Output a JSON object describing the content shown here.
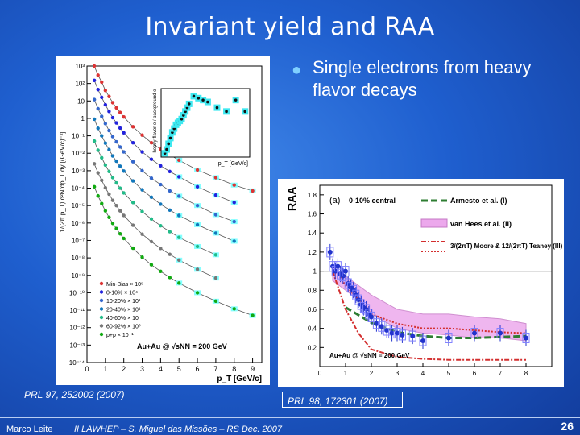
{
  "slide": {
    "title": "Invariant yield and RAA",
    "bullet": "Single electrons from heavy flavor decays",
    "ref_left": "PRL 97, 252002 (2007)",
    "ref_right": "PRL 98, 172301 (2007)",
    "footer_author": "Marco Leite",
    "footer_event": "II LAWHEP – S. Miguel das Missões – RS   Dec. 2007",
    "page_number": "26",
    "colors": {
      "background": "#1f5fcf",
      "accent": "#7fd0ff"
    }
  },
  "chart_data": [
    {
      "type": "scatter",
      "y_scale": "log",
      "xlabel": "p_T [GeV/c]",
      "ylabel": "1/(2π p_T) d²N/dp_T dy [(GeV/c)⁻²]",
      "x_ticks": [
        "0",
        "1",
        "2",
        "3",
        "4",
        "5",
        "6",
        "7",
        "8",
        "9"
      ],
      "y_ticks": [
        "10³",
        "10²",
        "10",
        "1",
        "10⁻¹",
        "10⁻²",
        "10⁻³",
        "10⁻⁴",
        "10⁻⁵",
        "10⁻⁶",
        "10⁻⁷",
        "10⁻⁸",
        "10⁻⁹",
        "10⁻¹⁰",
        "10⁻¹¹",
        "10⁻¹²",
        "10⁻¹³",
        "10⁻¹⁴"
      ],
      "legend": [
        "Min-Bias × 10⁵",
        "0-10% × 10⁴",
        "10-20% × 10³",
        "20-40% × 10²",
        "40-60% × 10",
        "60-92% × 10⁰",
        "p+p × 10⁻¹"
      ],
      "annotation": "Au+Au @ √sNN = 200 GeV",
      "series_colors": [
        "#d33",
        "#22d",
        "#36c",
        "#17b",
        "#2b8",
        "#777",
        "#1a1"
      ],
      "series": [
        {
          "name": "Min-Bias × 10⁵",
          "x": [
            0.4,
            0.6,
            0.8,
            1.0,
            1.2,
            1.4,
            1.6,
            1.8,
            2.0,
            2.5,
            3.0,
            3.5,
            4.0,
            4.5,
            5.0,
            6.0,
            7.0,
            8.0,
            9.0
          ],
          "y": [
            1000,
            300,
            120,
            40,
            18,
            8,
            4,
            2.2,
            1.2,
            0.33,
            0.11,
            0.04,
            0.017,
            0.008,
            0.004,
            0.0011,
            0.0004,
            0.00015,
            7e-05
          ]
        },
        {
          "name": "0-10% × 10⁴",
          "x": [
            0.4,
            0.6,
            0.8,
            1.0,
            1.2,
            1.4,
            1.6,
            1.8,
            2.0,
            2.5,
            3.0,
            3.5,
            4.0,
            4.5,
            5.0,
            6.0,
            7.0,
            8.0
          ],
          "y": [
            150,
            45,
            16,
            6,
            2.5,
            1.1,
            0.55,
            0.28,
            0.15,
            0.04,
            0.012,
            0.0045,
            0.0019,
            0.0009,
            0.00045,
            0.00012,
            4e-05,
            1.5e-05
          ]
        },
        {
          "name": "10-20% × 10³",
          "x": [
            0.4,
            0.6,
            0.8,
            1.0,
            1.2,
            1.4,
            1.6,
            1.8,
            2.0,
            2.5,
            3.0,
            3.5,
            4.0,
            4.5,
            5.0,
            6.0,
            7.0,
            8.0
          ],
          "y": [
            12,
            3.6,
            1.3,
            0.5,
            0.2,
            0.09,
            0.045,
            0.023,
            0.012,
            0.0033,
            0.001,
            0.00037,
            0.00016,
            7e-05,
            3.5e-05,
            1e-05,
            3e-06,
            1.2e-06
          ]
        },
        {
          "name": "20-40% × 10²",
          "x": [
            0.4,
            0.6,
            0.8,
            1.0,
            1.2,
            1.4,
            1.6,
            1.8,
            2.0,
            2.5,
            3.0,
            3.5,
            4.0,
            4.5,
            5.0,
            6.0,
            7.0,
            8.0
          ],
          "y": [
            0.9,
            0.27,
            0.1,
            0.038,
            0.016,
            0.007,
            0.0035,
            0.0018,
            0.00095,
            0.00026,
            8e-05,
            3e-05,
            1.2e-05,
            5.5e-06,
            2.7e-06,
            8e-07,
            2.6e-07,
            9e-08
          ]
        },
        {
          "name": "40-60% × 10",
          "x": [
            0.4,
            0.6,
            0.8,
            1.0,
            1.2,
            1.4,
            1.6,
            1.8,
            2.0,
            2.5,
            3.0,
            3.5,
            4.0,
            4.5,
            5.0,
            6.0,
            7.0
          ],
          "y": [
            0.05,
            0.015,
            0.0055,
            0.0021,
            0.0009,
            0.0004,
            0.0002,
            0.0001,
            5.3e-05,
            1.5e-05,
            4.5e-06,
            1.7e-06,
            7e-07,
            3.2e-07,
            1.5e-07,
            4.5e-08,
            1.5e-08
          ]
        },
        {
          "name": "60-92% × 10⁰",
          "x": [
            0.4,
            0.6,
            0.8,
            1.0,
            1.2,
            1.4,
            1.6,
            1.8,
            2.0,
            2.5,
            3.0,
            3.5,
            4.0,
            4.5,
            5.0,
            6.0,
            7.0
          ],
          "y": [
            0.0025,
            0.00075,
            0.00028,
            0.000105,
            4.5e-05,
            2e-05,
            1e-05,
            5e-06,
            2.7e-06,
            7.5e-07,
            2.3e-07,
            8.5e-08,
            3.5e-08,
            1.6e-08,
            7.5e-09,
            2.2e-09,
            7e-10
          ]
        },
        {
          "name": "p+p × 10⁻¹",
          "x": [
            0.4,
            0.6,
            0.8,
            1.0,
            1.2,
            1.4,
            1.6,
            1.8,
            2.0,
            2.5,
            3.0,
            3.5,
            4.0,
            4.5,
            5.0,
            6.0,
            7.0,
            8.0,
            9.0
          ],
          "y": [
            0.00012,
            3.6e-05,
            1.3e-05,
            5e-06,
            2.1e-06,
            9.5e-07,
            4.8e-07,
            2.4e-07,
            1.3e-07,
            3.6e-08,
            1.1e-08,
            4e-09,
            1.7e-09,
            7.5e-10,
            3.6e-10,
            1e-10,
            3.3e-11,
            1.2e-11,
            5e-12
          ]
        }
      ],
      "inset": {
        "xlabel": "p_T [GeV/c]",
        "ylabel": "heavy-flavor e / background e",
        "x": [
          0.4,
          0.6,
          0.8,
          1.0,
          1.2,
          1.4,
          1.6,
          1.8,
          2.0,
          2.2,
          2.4,
          2.6,
          2.8,
          3.0,
          3.5,
          4.0,
          4.5,
          5.0,
          6.0,
          7.0,
          8.0,
          9.0
        ],
        "y": [
          0.1,
          0.2,
          0.35,
          0.5,
          0.65,
          0.75,
          0.85,
          0.9,
          0.95,
          1.0,
          1.1,
          1.2,
          1.3,
          1.4,
          1.6,
          1.55,
          1.5,
          1.45,
          1.3,
          1.2,
          1.5,
          1.2
        ]
      }
    },
    {
      "type": "scatter",
      "title": "0-10% central",
      "panel_label": "(a)",
      "ylabel": "RAA",
      "x_ticks": [
        "0",
        "1",
        "2",
        "3",
        "4",
        "5",
        "6",
        "7",
        "8"
      ],
      "y_ticks": [
        "0.2",
        "0.4",
        "0.6",
        "0.8",
        "1",
        "1.2",
        "1.4",
        "1.6",
        "1.8"
      ],
      "ylim": [
        0,
        1.9
      ],
      "xlim": [
        0,
        9
      ],
      "annotation": "Au+Au @ √sNN = 200 GeV",
      "legend": [
        "Armesto et al. (I)",
        "van Hees et al. (II)",
        "3/(2πT) Moore & 12/(2πT) Teaney (III)"
      ],
      "series": [
        {
          "name": "data",
          "x": [
            0.4,
            0.5,
            0.6,
            0.7,
            0.8,
            0.9,
            1.0,
            1.1,
            1.2,
            1.3,
            1.4,
            1.5,
            1.6,
            1.7,
            1.8,
            1.9,
            2.0,
            2.2,
            2.4,
            2.6,
            2.8,
            3.0,
            3.2,
            3.6,
            4.0,
            5.0,
            6.0,
            7.0,
            8.0
          ],
          "y": [
            1.2,
            1.05,
            1.0,
            1.05,
            0.97,
            0.95,
            1.0,
            0.87,
            0.83,
            0.8,
            0.75,
            0.7,
            0.65,
            0.62,
            0.6,
            0.55,
            0.52,
            0.45,
            0.42,
            0.38,
            0.35,
            0.35,
            0.33,
            0.32,
            0.27,
            0.3,
            0.35,
            0.35,
            0.3
          ]
        }
      ],
      "band_color": "#e070e0",
      "line_colors": {
        "armesto": "#2e7d32",
        "moore": "#d32f2f",
        "teaney": "#d32f2f"
      }
    }
  ]
}
